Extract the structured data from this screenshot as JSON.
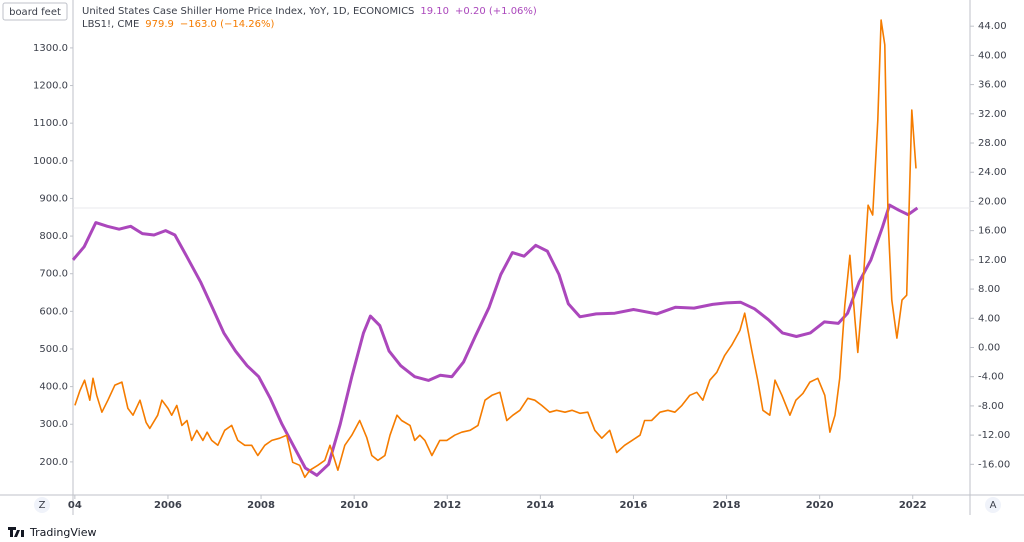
{
  "chart_data": {
    "type": "line",
    "y_unit_label": "board feet",
    "xlim": [
      2003.96,
      2023.23
    ],
    "xticks": [
      {
        "value": 2004,
        "label": "04"
      },
      2006,
      2008,
      2010,
      2012,
      2014,
      2016,
      2018,
      2020,
      2022
    ],
    "ylim": [
      112,
      1414
    ],
    "yticks": [
      {
        "value": 200,
        "label": "200.0"
      },
      {
        "value": 300,
        "label": "300.0"
      },
      {
        "value": 400,
        "label": "400.0"
      },
      {
        "value": 500,
        "label": "500.0"
      },
      {
        "value": 600,
        "label": "600.0"
      },
      {
        "value": 700,
        "label": "700.0"
      },
      {
        "value": 800,
        "label": "800.0"
      },
      {
        "value": 900,
        "label": "900.0"
      },
      {
        "value": 1000,
        "label": "1000.0"
      },
      {
        "value": 1100,
        "label": "1100.0"
      },
      {
        "value": 1200,
        "label": "1200.0"
      },
      {
        "value": 1300,
        "label": "1300.0"
      }
    ],
    "y2lim": [
      -20.2,
      46.9
    ],
    "y2ticks": [
      {
        "value": -16,
        "label": "-16.00"
      },
      {
        "value": -12,
        "label": "-12.00"
      },
      {
        "value": -8,
        "label": "-8.00"
      },
      {
        "value": -4,
        "label": "-4.00"
      },
      {
        "value": 0,
        "label": "0.00"
      },
      {
        "value": 4,
        "label": "4.00"
      },
      {
        "value": 8,
        "label": "8.00"
      },
      {
        "value": 12,
        "label": "12.00"
      },
      {
        "value": 16,
        "label": "16.00"
      },
      {
        "value": 20,
        "label": "20.00"
      },
      {
        "value": 24,
        "label": "24.00"
      },
      {
        "value": 28,
        "label": "28.00"
      },
      {
        "value": 32,
        "label": "32.00"
      },
      {
        "value": 36,
        "label": "36.00"
      },
      {
        "value": 40,
        "label": "40.00"
      },
      {
        "value": 44,
        "label": "44.00"
      }
    ],
    "series": [
      {
        "name": "United States Case Shiller Home Price Index, YoY, 1D, ECONOMICS",
        "last_label": "19.10",
        "change_label": "+0.20 (+1.06%)",
        "color": "#ab47bc",
        "axis": "y2",
        "x": [
          2003.96,
          2004.2,
          2004.45,
          2004.7,
          2004.95,
          2005.2,
          2005.45,
          2005.7,
          2005.95,
          2006.15,
          2006.4,
          2006.7,
          2006.95,
          2007.2,
          2007.45,
          2007.7,
          2007.95,
          2008.2,
          2008.45,
          2008.7,
          2008.95,
          2009.2,
          2009.45,
          2009.7,
          2009.95,
          2010.2,
          2010.35,
          2010.55,
          2010.75,
          2011.0,
          2011.3,
          2011.6,
          2011.85,
          2012.1,
          2012.35,
          2012.6,
          2012.9,
          2013.15,
          2013.4,
          2013.65,
          2013.9,
          2014.15,
          2014.4,
          2014.6,
          2014.85,
          2015.2,
          2015.6,
          2016.0,
          2016.5,
          2016.9,
          2017.3,
          2017.7,
          2018.0,
          2018.3,
          2018.6,
          2018.9,
          2019.2,
          2019.5,
          2019.8,
          2020.1,
          2020.4,
          2020.6,
          2020.85,
          2021.1,
          2021.35,
          2021.5,
          2021.7,
          2021.9,
          2022.1
        ],
        "values": [
          12.0,
          13.8,
          17.1,
          16.6,
          16.2,
          16.6,
          15.6,
          15.4,
          16.0,
          15.4,
          12.5,
          9.0,
          5.5,
          2.0,
          -0.5,
          -2.5,
          -4.0,
          -7.0,
          -10.5,
          -13.5,
          -16.5,
          -17.5,
          -16.0,
          -10.5,
          -4.0,
          2.0,
          4.3,
          3.0,
          -0.5,
          -2.5,
          -4.0,
          -4.5,
          -3.8,
          -4.0,
          -2.0,
          1.5,
          5.5,
          10.0,
          13.0,
          12.5,
          14.0,
          13.2,
          10.0,
          6.0,
          4.2,
          4.6,
          4.7,
          5.2,
          4.6,
          5.5,
          5.4,
          5.9,
          6.1,
          6.2,
          5.3,
          3.8,
          2.0,
          1.5,
          2.0,
          3.5,
          3.3,
          4.7,
          9.0,
          12.0,
          16.5,
          19.5,
          18.8,
          18.2,
          19.1
        ]
      },
      {
        "name": "LBS1!, CME",
        "last_label": "979.9",
        "change_label": "−163.0 (−14.26%)",
        "color": "#f57c00",
        "axis": "y",
        "x": [
          2004.0,
          2004.11,
          2004.21,
          2004.32,
          2004.39,
          2004.47,
          2004.58,
          2004.71,
          2004.86,
          2005.01,
          2005.14,
          2005.25,
          2005.4,
          2005.53,
          2005.61,
          2005.78,
          2005.87,
          2006.0,
          2006.08,
          2006.19,
          2006.3,
          2006.41,
          2006.51,
          2006.62,
          2006.75,
          2006.84,
          2006.94,
          2007.07,
          2007.22,
          2007.37,
          2007.5,
          2007.65,
          2007.8,
          2007.93,
          2008.08,
          2008.23,
          2008.4,
          2008.55,
          2008.68,
          2008.83,
          2008.94,
          2009.05,
          2009.22,
          2009.37,
          2009.48,
          2009.65,
          2009.8,
          2009.95,
          2010.12,
          2010.27,
          2010.38,
          2010.51,
          2010.66,
          2010.77,
          2010.92,
          2011.02,
          2011.2,
          2011.3,
          2011.41,
          2011.52,
          2011.67,
          2011.84,
          2011.99,
          2012.16,
          2012.31,
          2012.49,
          2012.66,
          2012.81,
          2012.96,
          2013.13,
          2013.28,
          2013.41,
          2013.56,
          2013.73,
          2013.88,
          2014.03,
          2014.2,
          2014.35,
          2014.53,
          2014.68,
          2014.85,
          2015.02,
          2015.17,
          2015.32,
          2015.49,
          2015.64,
          2015.81,
          2015.97,
          2016.14,
          2016.24,
          2016.39,
          2016.57,
          2016.74,
          2016.89,
          2017.04,
          2017.21,
          2017.36,
          2017.49,
          2017.64,
          2017.79,
          2017.96,
          2018.11,
          2018.29,
          2018.39,
          2018.54,
          2018.67,
          2018.78,
          2018.93,
          2019.04,
          2019.19,
          2019.36,
          2019.49,
          2019.64,
          2019.79,
          2019.96,
          2020.11,
          2020.22,
          2020.33,
          2020.43,
          2020.54,
          2020.65,
          2020.76,
          2020.82,
          2020.91,
          2021.04,
          2021.14,
          2021.25,
          2021.32,
          2021.4,
          2021.47,
          2021.55,
          2021.66,
          2021.77,
          2021.87,
          2021.98,
          2022.07
        ],
        "values": [
          350,
          390,
          417,
          364,
          422,
          377,
          332,
          364,
          404,
          412,
          342,
          324,
          364,
          305,
          289,
          324,
          364,
          342,
          324,
          350,
          297,
          310,
          257,
          284,
          257,
          279,
          257,
          244,
          284,
          297,
          257,
          244,
          244,
          217,
          244,
          257,
          263,
          271,
          199,
          191,
          159,
          178,
          191,
          204,
          244,
          178,
          244,
          271,
          310,
          265,
          217,
          204,
          217,
          271,
          324,
          310,
          297,
          257,
          271,
          257,
          217,
          257,
          257,
          271,
          279,
          284,
          297,
          364,
          377,
          385,
          310,
          324,
          337,
          369,
          364,
          350,
          332,
          337,
          332,
          337,
          329,
          332,
          284,
          263,
          284,
          225,
          244,
          257,
          271,
          310,
          310,
          332,
          337,
          332,
          350,
          377,
          385,
          364,
          417,
          438,
          483,
          510,
          550,
          595,
          497,
          417,
          337,
          324,
          417,
          377,
          324,
          364,
          382,
          412,
          422,
          377,
          279,
          324,
          422,
          616,
          749,
          576,
          491,
          630,
          882,
          856,
          1108,
          1374,
          1308,
          842,
          630,
          529,
          630,
          643,
          1135,
          979.9
        ]
      }
    ],
    "left_button": "Z",
    "right_button": "A",
    "watermark": "TradingView"
  }
}
